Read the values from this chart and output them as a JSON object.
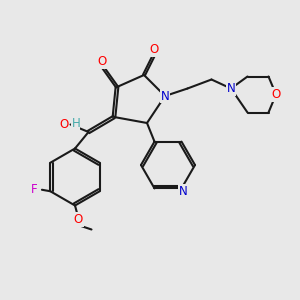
{
  "bg_color": "#e8e8e8",
  "bond_color": "#1a1a1a",
  "bond_width": 1.5,
  "atom_colors": {
    "O": "#ff0000",
    "N": "#0000cc",
    "F": "#cc00cc",
    "H": "#44aaaa",
    "C": "#1a1a1a"
  },
  "font_size": 8.5
}
